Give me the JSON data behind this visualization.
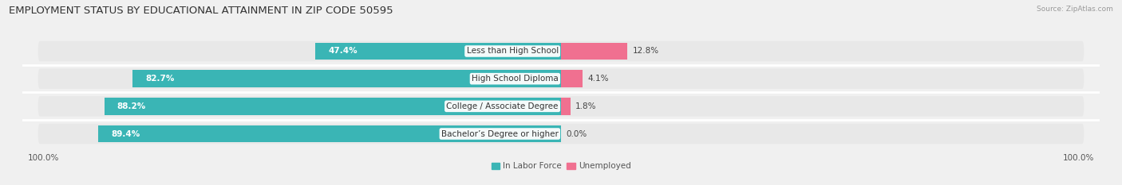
{
  "title": "EMPLOYMENT STATUS BY EDUCATIONAL ATTAINMENT IN ZIP CODE 50595",
  "source": "Source: ZipAtlas.com",
  "categories": [
    "Less than High School",
    "High School Diploma",
    "College / Associate Degree",
    "Bachelor’s Degree or higher"
  ],
  "in_labor_force": [
    47.4,
    82.7,
    88.2,
    89.4
  ],
  "unemployed": [
    12.8,
    4.1,
    1.8,
    0.0
  ],
  "labor_color": "#3ab5b5",
  "unemployed_color": "#f07090",
  "bg_color": "#f0f0f0",
  "row_bg_color": "#e8e8e8",
  "title_fontsize": 9.5,
  "label_fontsize": 7.5,
  "tick_fontsize": 7.5,
  "bar_height": 0.62,
  "total_width": 100
}
